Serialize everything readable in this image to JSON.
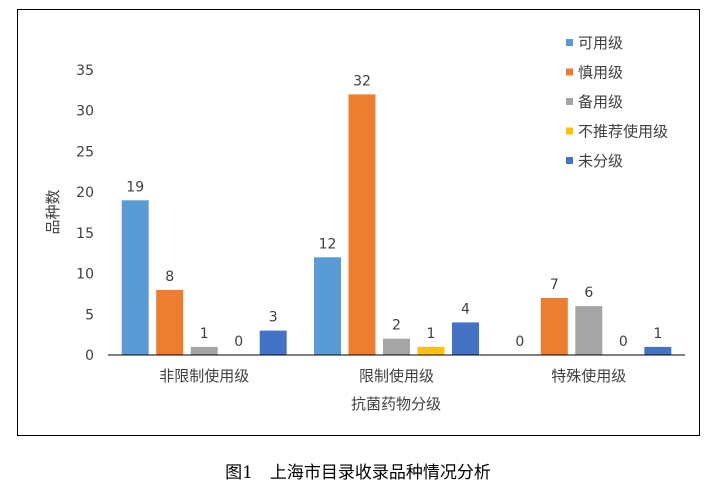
{
  "chart_data": {
    "type": "bar",
    "categories": [
      "非限制使用级",
      "限制使用级",
      "特殊使用级"
    ],
    "series": [
      {
        "name": "可用级",
        "color": "#5B9BD5",
        "values": [
          19,
          12,
          0
        ]
      },
      {
        "name": "慎用级",
        "color": "#ED7D31",
        "values": [
          8,
          32,
          7
        ]
      },
      {
        "name": "备用级",
        "color": "#A5A5A5",
        "values": [
          1,
          2,
          6
        ]
      },
      {
        "name": "不推荐使用级",
        "color": "#FFC000",
        "values": [
          0,
          1,
          0
        ]
      },
      {
        "name": "未分级",
        "color": "#4472C4",
        "values": [
          3,
          4,
          1
        ]
      }
    ],
    "xlabel": "抗菌药物分级",
    "ylabel": "品种数",
    "ylim": [
      0,
      35
    ],
    "yticks": [
      0,
      5,
      10,
      15,
      20,
      25,
      30,
      35
    ],
    "grid": false,
    "legend_position": "top-right"
  },
  "caption": "图1　上海市目录收录品种情况分析"
}
